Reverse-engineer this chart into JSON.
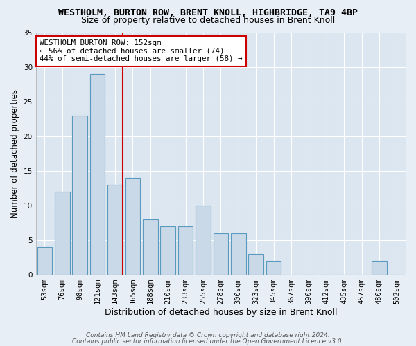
{
  "title": "WESTHOLM, BURTON ROW, BRENT KNOLL, HIGHBRIDGE, TA9 4BP",
  "subtitle": "Size of property relative to detached houses in Brent Knoll",
  "xlabel": "Distribution of detached houses by size in Brent Knoll",
  "ylabel": "Number of detached properties",
  "categories": [
    "53sqm",
    "76sqm",
    "98sqm",
    "121sqm",
    "143sqm",
    "165sqm",
    "188sqm",
    "210sqm",
    "233sqm",
    "255sqm",
    "278sqm",
    "300sqm",
    "323sqm",
    "345sqm",
    "367sqm",
    "390sqm",
    "412sqm",
    "435sqm",
    "457sqm",
    "480sqm",
    "502sqm"
  ],
  "values": [
    4,
    12,
    23,
    29,
    13,
    14,
    8,
    7,
    7,
    10,
    6,
    6,
    3,
    2,
    0,
    0,
    0,
    0,
    0,
    2,
    0
  ],
  "bar_color": "#c9d9e8",
  "bar_edge_color": "#5b9abf",
  "background_color": "#e8eef5",
  "plot_bg_color": "#dce6f0",
  "vline_color": "#cc0000",
  "vline_x_index": 4.43,
  "annotation_text": "WESTHOLM BURTON ROW: 152sqm\n← 56% of detached houses are smaller (74)\n44% of semi-detached houses are larger (58) →",
  "annotation_box_facecolor": "#ffffff",
  "annotation_box_edgecolor": "#cc0000",
  "ylim": [
    0,
    35
  ],
  "yticks": [
    0,
    5,
    10,
    15,
    20,
    25,
    30,
    35
  ],
  "footer1": "Contains HM Land Registry data © Crown copyright and database right 2024.",
  "footer2": "Contains public sector information licensed under the Open Government Licence v3.0.",
  "title_fontsize": 9.5,
  "subtitle_fontsize": 9,
  "xlabel_fontsize": 9,
  "ylabel_fontsize": 8.5,
  "tick_fontsize": 7.5,
  "annotation_fontsize": 7.8,
  "footer_fontsize": 6.5,
  "grid_color": "#ffffff",
  "grid_linewidth": 0.8
}
